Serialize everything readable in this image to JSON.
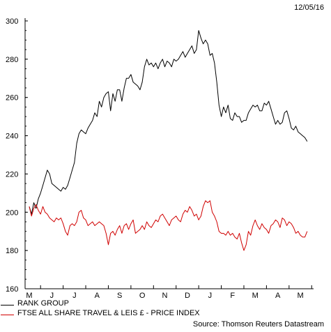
{
  "date": "12/05/16",
  "source": "Source: Thomson Reuters Datastream",
  "chart_data": {
    "type": "line",
    "ylim": [
      160,
      300
    ],
    "y_ticks": [
      160,
      180,
      200,
      220,
      240,
      260,
      280,
      300
    ],
    "x_tick_labels": [
      "M",
      "J",
      "J",
      "A",
      "S",
      "O",
      "N",
      "D",
      "J",
      "F",
      "M",
      "A",
      "M"
    ],
    "x_range": [
      0,
      12.4
    ],
    "grid": false,
    "legend_position": "bottom-left",
    "series": [
      {
        "name": "RANK GROUP",
        "color": "#000000",
        "points": [
          [
            0.0,
            203
          ],
          [
            0.1,
            199
          ],
          [
            0.2,
            205
          ],
          [
            0.3,
            202
          ],
          [
            0.4,
            207
          ],
          [
            0.5,
            210
          ],
          [
            0.6,
            214
          ],
          [
            0.7,
            218
          ],
          [
            0.8,
            222
          ],
          [
            0.9,
            220
          ],
          [
            1.0,
            215
          ],
          [
            1.1,
            214
          ],
          [
            1.2,
            213
          ],
          [
            1.3,
            212
          ],
          [
            1.4,
            211
          ],
          [
            1.5,
            213
          ],
          [
            1.6,
            212
          ],
          [
            1.7,
            214
          ],
          [
            1.8,
            218
          ],
          [
            1.9,
            222
          ],
          [
            2.0,
            226
          ],
          [
            2.1,
            236
          ],
          [
            2.2,
            241
          ],
          [
            2.3,
            243
          ],
          [
            2.4,
            242
          ],
          [
            2.5,
            241
          ],
          [
            2.6,
            244
          ],
          [
            2.7,
            246
          ],
          [
            2.8,
            248
          ],
          [
            2.9,
            252
          ],
          [
            3.0,
            250
          ],
          [
            3.1,
            258
          ],
          [
            3.2,
            255
          ],
          [
            3.3,
            260
          ],
          [
            3.4,
            262
          ],
          [
            3.5,
            263
          ],
          [
            3.6,
            253
          ],
          [
            3.7,
            262
          ],
          [
            3.8,
            258
          ],
          [
            3.9,
            264
          ],
          [
            4.0,
            264
          ],
          [
            4.1,
            258
          ],
          [
            4.2,
            265
          ],
          [
            4.3,
            270
          ],
          [
            4.4,
            270
          ],
          [
            4.5,
            272
          ],
          [
            4.6,
            268
          ],
          [
            4.7,
            267
          ],
          [
            4.8,
            266
          ],
          [
            4.9,
            264
          ],
          [
            5.0,
            268
          ],
          [
            5.1,
            276
          ],
          [
            5.2,
            280
          ],
          [
            5.3,
            277
          ],
          [
            5.4,
            278
          ],
          [
            5.5,
            276
          ],
          [
            5.6,
            278
          ],
          [
            5.7,
            275
          ],
          [
            5.8,
            278
          ],
          [
            5.9,
            280
          ],
          [
            6.0,
            276
          ],
          [
            6.1,
            279
          ],
          [
            6.2,
            278
          ],
          [
            6.3,
            276
          ],
          [
            6.4,
            280
          ],
          [
            6.5,
            279
          ],
          [
            6.6,
            280
          ],
          [
            6.7,
            282
          ],
          [
            6.8,
            284
          ],
          [
            6.9,
            281
          ],
          [
            7.0,
            283
          ],
          [
            7.1,
            285
          ],
          [
            7.2,
            287
          ],
          [
            7.3,
            283
          ],
          [
            7.4,
            285
          ],
          [
            7.5,
            295
          ],
          [
            7.6,
            291
          ],
          [
            7.7,
            288
          ],
          [
            7.8,
            290
          ],
          [
            7.9,
            288
          ],
          [
            8.0,
            282
          ],
          [
            8.1,
            283
          ],
          [
            8.2,
            278
          ],
          [
            8.3,
            268
          ],
          [
            8.4,
            256
          ],
          [
            8.5,
            250
          ],
          [
            8.6,
            255
          ],
          [
            8.7,
            252
          ],
          [
            8.8,
            256
          ],
          [
            8.9,
            249
          ],
          [
            9.0,
            248
          ],
          [
            9.1,
            252
          ],
          [
            9.2,
            250
          ],
          [
            9.3,
            250
          ],
          [
            9.4,
            247
          ],
          [
            9.5,
            248
          ],
          [
            9.6,
            248
          ],
          [
            9.7,
            252
          ],
          [
            9.8,
            254
          ],
          [
            9.9,
            256
          ],
          [
            10.0,
            255
          ],
          [
            10.1,
            256
          ],
          [
            10.2,
            253
          ],
          [
            10.3,
            253
          ],
          [
            10.4,
            257
          ],
          [
            10.5,
            256
          ],
          [
            10.6,
            258
          ],
          [
            10.7,
            254
          ],
          [
            10.8,
            250
          ],
          [
            10.9,
            246
          ],
          [
            11.0,
            248
          ],
          [
            11.1,
            246
          ],
          [
            11.2,
            247
          ],
          [
            11.3,
            252
          ],
          [
            11.4,
            253
          ],
          [
            11.5,
            249
          ],
          [
            11.6,
            244
          ],
          [
            11.7,
            243
          ],
          [
            11.8,
            245
          ],
          [
            11.9,
            242
          ],
          [
            12.0,
            241
          ],
          [
            12.1,
            240
          ],
          [
            12.2,
            239
          ],
          [
            12.3,
            237
          ]
        ]
      },
      {
        "name": "FTSE ALL SHARE TRAVEL & LEIS £ - PRICE INDEX",
        "color": "#d00000",
        "points": [
          [
            0.0,
            203
          ],
          [
            0.1,
            198
          ],
          [
            0.2,
            202
          ],
          [
            0.3,
            204
          ],
          [
            0.4,
            201
          ],
          [
            0.5,
            199
          ],
          [
            0.6,
            203
          ],
          [
            0.7,
            200
          ],
          [
            0.8,
            199
          ],
          [
            0.9,
            197
          ],
          [
            1.0,
            196
          ],
          [
            1.1,
            195
          ],
          [
            1.2,
            197
          ],
          [
            1.3,
            196
          ],
          [
            1.4,
            197
          ],
          [
            1.5,
            194
          ],
          [
            1.6,
            190
          ],
          [
            1.7,
            188
          ],
          [
            1.8,
            193
          ],
          [
            1.9,
            194
          ],
          [
            2.0,
            193
          ],
          [
            2.1,
            195
          ],
          [
            2.2,
            200
          ],
          [
            2.3,
            201
          ],
          [
            2.4,
            197
          ],
          [
            2.5,
            196
          ],
          [
            2.6,
            193
          ],
          [
            2.7,
            194
          ],
          [
            2.8,
            195
          ],
          [
            2.9,
            193
          ],
          [
            3.0,
            194
          ],
          [
            3.1,
            195
          ],
          [
            3.2,
            194
          ],
          [
            3.3,
            193
          ],
          [
            3.4,
            189
          ],
          [
            3.5,
            183
          ],
          [
            3.6,
            189
          ],
          [
            3.7,
            190
          ],
          [
            3.8,
            188
          ],
          [
            3.9,
            191
          ],
          [
            4.0,
            193
          ],
          [
            4.1,
            189
          ],
          [
            4.2,
            193
          ],
          [
            4.3,
            194
          ],
          [
            4.4,
            191
          ],
          [
            4.5,
            194
          ],
          [
            4.6,
            196
          ],
          [
            4.7,
            189
          ],
          [
            4.8,
            190
          ],
          [
            4.9,
            191
          ],
          [
            5.0,
            193
          ],
          [
            5.1,
            191
          ],
          [
            5.2,
            195
          ],
          [
            5.3,
            193
          ],
          [
            5.4,
            192
          ],
          [
            5.5,
            194
          ],
          [
            5.6,
            196
          ],
          [
            5.7,
            195
          ],
          [
            5.8,
            198
          ],
          [
            5.9,
            199
          ],
          [
            6.0,
            197
          ],
          [
            6.1,
            195
          ],
          [
            6.2,
            193
          ],
          [
            6.3,
            196
          ],
          [
            6.4,
            197
          ],
          [
            6.5,
            198
          ],
          [
            6.6,
            196
          ],
          [
            6.7,
            195
          ],
          [
            6.8,
            199
          ],
          [
            6.9,
            201
          ],
          [
            7.0,
            200
          ],
          [
            7.1,
            203
          ],
          [
            7.2,
            201
          ],
          [
            7.3,
            198
          ],
          [
            7.4,
            199
          ],
          [
            7.5,
            196
          ],
          [
            7.6,
            198
          ],
          [
            7.7,
            203
          ],
          [
            7.8,
            206
          ],
          [
            7.9,
            205
          ],
          [
            8.0,
            206
          ],
          [
            8.1,
            200
          ],
          [
            8.2,
            198
          ],
          [
            8.3,
            195
          ],
          [
            8.4,
            190
          ],
          [
            8.5,
            189
          ],
          [
            8.6,
            189
          ],
          [
            8.7,
            188
          ],
          [
            8.8,
            190
          ],
          [
            8.9,
            188
          ],
          [
            9.0,
            189
          ],
          [
            9.1,
            187
          ],
          [
            9.2,
            186
          ],
          [
            9.3,
            189
          ],
          [
            9.4,
            184
          ],
          [
            9.5,
            180
          ],
          [
            9.6,
            183
          ],
          [
            9.7,
            190
          ],
          [
            9.8,
            188
          ],
          [
            9.9,
            193
          ],
          [
            10.0,
            196
          ],
          [
            10.1,
            193
          ],
          [
            10.2,
            191
          ],
          [
            10.3,
            194
          ],
          [
            10.4,
            192
          ],
          [
            10.5,
            191
          ],
          [
            10.6,
            189
          ],
          [
            10.7,
            193
          ],
          [
            10.8,
            194
          ],
          [
            10.9,
            196
          ],
          [
            11.0,
            195
          ],
          [
            11.1,
            192
          ],
          [
            11.2,
            197
          ],
          [
            11.3,
            196
          ],
          [
            11.4,
            193
          ],
          [
            11.5,
            195
          ],
          [
            11.6,
            194
          ],
          [
            11.7,
            192
          ],
          [
            11.8,
            189
          ],
          [
            11.9,
            190
          ],
          [
            12.0,
            188
          ],
          [
            12.1,
            187
          ],
          [
            12.2,
            187
          ],
          [
            12.3,
            190
          ]
        ]
      }
    ]
  }
}
